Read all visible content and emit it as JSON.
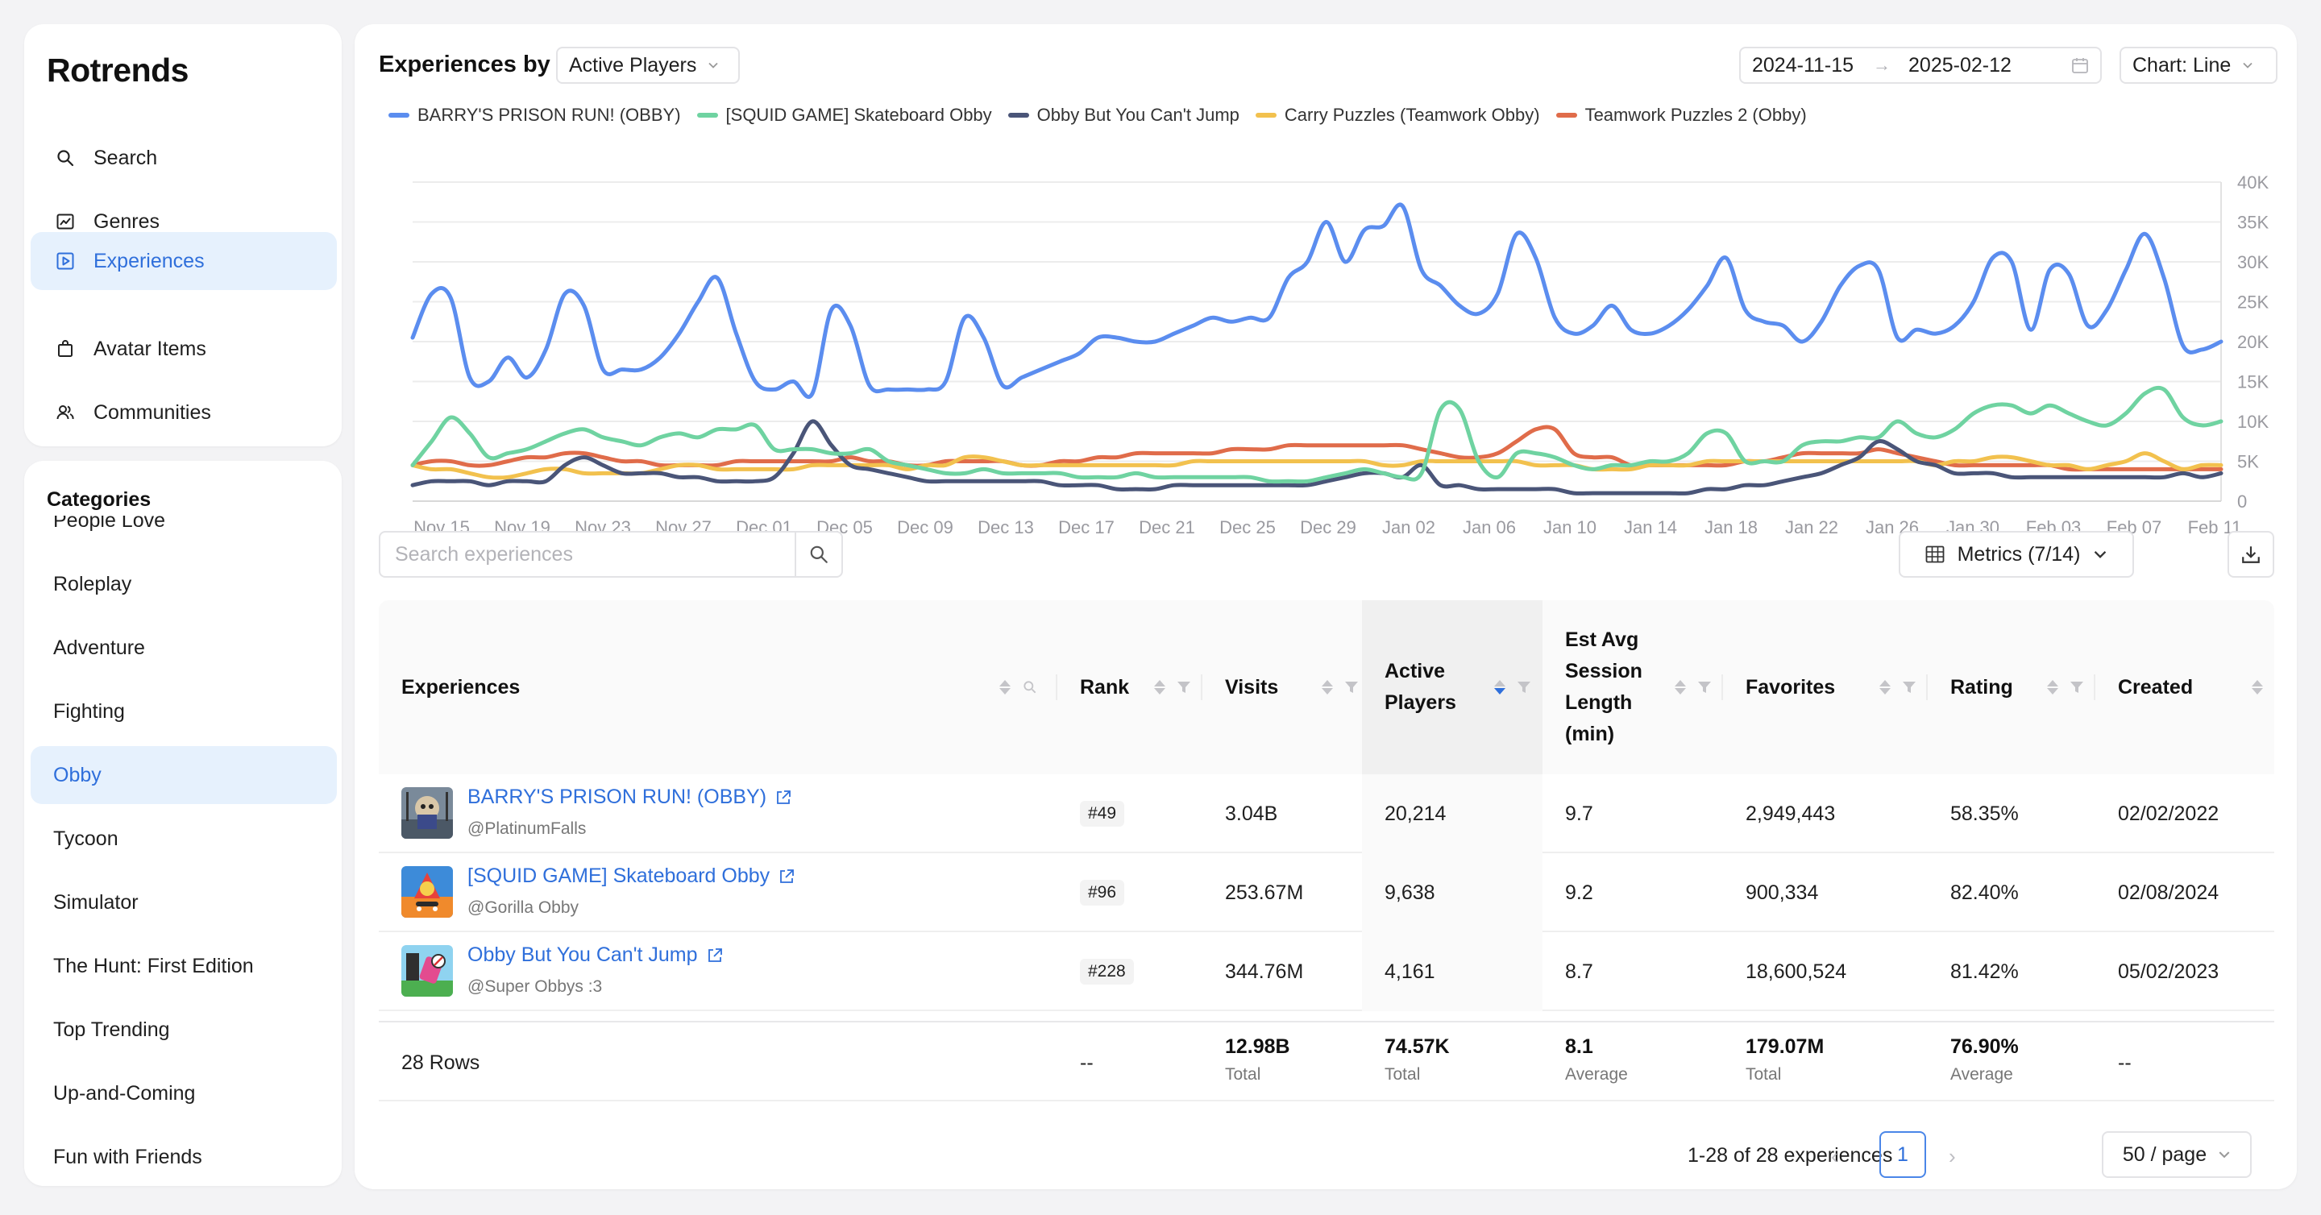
{
  "app": {
    "brand": "Rotrends"
  },
  "nav": {
    "items": [
      {
        "label": "Search",
        "icon": "search-icon",
        "active": false
      },
      {
        "label": "Genres",
        "icon": "chart-icon",
        "active": false
      },
      {
        "label": "Experiences",
        "icon": "play-square-icon",
        "active": true
      },
      {
        "label": "Avatar Items",
        "icon": "shopping-bag-icon",
        "active": false
      },
      {
        "label": "Communities",
        "icon": "people-icon",
        "active": false
      }
    ]
  },
  "categories": {
    "title": "Categories",
    "items": [
      {
        "label": "People Love",
        "active": false
      },
      {
        "label": "Roleplay",
        "active": false
      },
      {
        "label": "Adventure",
        "active": false
      },
      {
        "label": "Fighting",
        "active": false
      },
      {
        "label": "Obby",
        "active": true
      },
      {
        "label": "Tycoon",
        "active": false
      },
      {
        "label": "Simulator",
        "active": false
      },
      {
        "label": "The Hunt: First Edition",
        "active": false
      },
      {
        "label": "Top Trending",
        "active": false
      },
      {
        "label": "Up-and-Coming",
        "active": false
      },
      {
        "label": "Fun with Friends",
        "active": false
      }
    ]
  },
  "header": {
    "title": "Experiences by",
    "metric_select": "Active Players",
    "date_start": "2024-11-15",
    "date_end": "2025-02-12",
    "chart_type": "Chart: Line"
  },
  "toolbar": {
    "search_placeholder": "Search experiences",
    "metrics_label": "Metrics (7/14)"
  },
  "chart_data": {
    "type": "line",
    "ylim": [
      0,
      40000
    ],
    "y_ticks": [
      "0",
      "5K",
      "10K",
      "15K",
      "20K",
      "25K",
      "30K",
      "35K",
      "40K"
    ],
    "x_ticks": [
      "Nov 15",
      "Nov 19",
      "Nov 23",
      "Nov 27",
      "Dec 01",
      "Dec 05",
      "Dec 09",
      "Dec 13",
      "Dec 17",
      "Dec 21",
      "Dec 25",
      "Dec 29",
      "Jan 02",
      "Jan 06",
      "Jan 10",
      "Jan 14",
      "Jan 18",
      "Jan 22",
      "Jan 26",
      "Jan 30",
      "Feb 03",
      "Feb 07",
      "Feb 11"
    ],
    "grid": true,
    "legend": "top-left",
    "series": [
      {
        "name": "BARRY'S PRISON RUN! (OBBY)",
        "color": "#5b8def",
        "values": [
          20500,
          26000,
          25500,
          15500,
          15000,
          18000,
          15500,
          19000,
          26000,
          24500,
          16500,
          16500,
          16500,
          18000,
          21000,
          25000,
          28000,
          21000,
          15000,
          14000,
          15000,
          13500,
          24000,
          22000,
          14500,
          14000,
          14000,
          14000,
          15000,
          23000,
          20500,
          14500,
          15500,
          16500,
          17500,
          18500,
          20500,
          20500,
          20000,
          20000,
          21000,
          22000,
          23000,
          22500,
          23000,
          23000,
          28000,
          30000,
          35000,
          30000,
          34000,
          34500,
          37000,
          29000,
          27000,
          24500,
          23500,
          26000,
          33500,
          30500,
          23000,
          21000,
          22000,
          24500,
          21500,
          21000,
          22000,
          24000,
          27000,
          30500,
          24000,
          22500,
          22000,
          20000,
          22500,
          27000,
          29500,
          29000,
          20500,
          21500,
          21000,
          22000,
          25000,
          30500,
          30000,
          21500,
          29000,
          28500,
          22000,
          24000,
          29000,
          33500,
          28000,
          19500,
          19000,
          20000
        ]
      },
      {
        "name": "[SQUID GAME] Skateboard Obby",
        "color": "#6fd3a1",
        "values": [
          4500,
          7500,
          10500,
          8500,
          5500,
          6000,
          6500,
          7500,
          8500,
          9000,
          8000,
          7500,
          7000,
          8000,
          8500,
          8000,
          9000,
          9000,
          9500,
          6500,
          6500,
          6500,
          6000,
          6000,
          6500,
          5000,
          4500,
          4000,
          3500,
          3500,
          4000,
          3500,
          3500,
          3500,
          3500,
          3000,
          3000,
          3000,
          3500,
          3000,
          3000,
          3000,
          3000,
          3000,
          3000,
          2500,
          2500,
          2500,
          3000,
          3500,
          4000,
          3500,
          3000,
          3500,
          11500,
          11500,
          5000,
          3000,
          6000,
          6000,
          5500,
          4500,
          4000,
          4500,
          4500,
          5000,
          5000,
          6000,
          8500,
          8500,
          5000,
          5000,
          5000,
          7000,
          7500,
          7500,
          8000,
          8000,
          10000,
          8500,
          8000,
          9000,
          11000,
          12000,
          12000,
          11000,
          12000,
          11000,
          10000,
          9500,
          11000,
          13500,
          14000,
          10500,
          9500,
          10000
        ]
      },
      {
        "name": "Obby But You Can't Jump",
        "color": "#4a5578",
        "values": [
          2000,
          2500,
          2500,
          2500,
          2000,
          2500,
          2500,
          2500,
          4500,
          5500,
          4500,
          3500,
          3500,
          3500,
          3000,
          3000,
          2500,
          2500,
          2500,
          3000,
          6000,
          10000,
          7000,
          4500,
          4000,
          3500,
          3000,
          2500,
          2500,
          2500,
          2500,
          2500,
          2500,
          2500,
          2000,
          2000,
          2000,
          1500,
          1500,
          1500,
          2000,
          2000,
          2000,
          2000,
          2000,
          2000,
          2000,
          2000,
          2500,
          3000,
          3500,
          3500,
          3000,
          4500,
          2000,
          2000,
          1500,
          1500,
          1500,
          1500,
          1500,
          1000,
          1000,
          1000,
          1000,
          1000,
          1000,
          1000,
          1500,
          1500,
          2000,
          2000,
          2500,
          3000,
          3500,
          4500,
          5500,
          7500,
          6500,
          5000,
          4500,
          3500,
          3500,
          3500,
          3000,
          3000,
          3000,
          3000,
          3000,
          3000,
          3000,
          3000,
          3000,
          3500,
          3000,
          3500
        ]
      },
      {
        "name": "Carry Puzzles (Teamwork Obby)",
        "color": "#f2c14e",
        "values": [
          4500,
          4000,
          4000,
          3500,
          3000,
          3000,
          3500,
          4000,
          4000,
          3500,
          3500,
          3500,
          3500,
          4000,
          4500,
          4500,
          4000,
          4000,
          4000,
          4000,
          4000,
          4500,
          4500,
          4500,
          4500,
          4500,
          4000,
          4500,
          4500,
          5500,
          5500,
          5000,
          4500,
          4500,
          4500,
          4500,
          4500,
          4500,
          4500,
          4500,
          4500,
          5000,
          5000,
          5000,
          5000,
          5000,
          5000,
          5000,
          5000,
          5000,
          5000,
          4500,
          4500,
          5000,
          5000,
          5000,
          5000,
          5000,
          5000,
          4500,
          4500,
          4500,
          4000,
          4000,
          4000,
          4500,
          4500,
          4500,
          5000,
          5000,
          5000,
          5000,
          5000,
          5000,
          5000,
          5000,
          5000,
          5000,
          5000,
          5000,
          4500,
          5000,
          5000,
          5500,
          5500,
          5000,
          4500,
          4500,
          4000,
          4500,
          5000,
          6000,
          5000,
          4000,
          4500,
          4500
        ]
      },
      {
        "name": "Teamwork Puzzles 2 (Obby)",
        "color": "#e06c4a",
        "values": [
          4500,
          5000,
          5000,
          4500,
          4500,
          5000,
          5500,
          5500,
          6000,
          6000,
          5500,
          5000,
          5000,
          4500,
          4500,
          4500,
          4500,
          5000,
          5000,
          5000,
          5000,
          5000,
          5000,
          5500,
          5000,
          5000,
          4500,
          4500,
          5000,
          5000,
          5000,
          5000,
          4500,
          4500,
          5000,
          5000,
          5500,
          5500,
          6000,
          6000,
          6000,
          6000,
          6000,
          6500,
          6500,
          6500,
          7000,
          7000,
          7000,
          7000,
          7000,
          7000,
          7000,
          6500,
          6000,
          5500,
          5500,
          6000,
          7500,
          9000,
          9000,
          6000,
          5500,
          5500,
          4500,
          4500,
          4500,
          4500,
          4500,
          4500,
          5000,
          5000,
          5500,
          6000,
          6000,
          6000,
          6000,
          6500,
          6000,
          5500,
          5000,
          4500,
          4500,
          4500,
          4500,
          4500,
          4500,
          4000,
          4000,
          4000,
          4000,
          4000,
          4000,
          4000,
          4000,
          4000
        ]
      }
    ]
  },
  "table": {
    "columns": [
      {
        "label": "Experiences",
        "key": "experience"
      },
      {
        "label": "Rank",
        "key": "rank"
      },
      {
        "label": "Visits",
        "key": "visits"
      },
      {
        "label": "Active Players",
        "key": "active"
      },
      {
        "label": "Est Avg Session Length (min)",
        "key": "session"
      },
      {
        "label": "Favorites",
        "key": "favorites"
      },
      {
        "label": "Rating",
        "key": "rating"
      },
      {
        "label": "Created",
        "key": "created"
      }
    ],
    "rows": [
      {
        "name": "BARRY'S PRISON RUN! (OBBY)",
        "creator": "@PlatinumFalls",
        "rank": "#49",
        "visits": "3.04B",
        "active": "20,214",
        "session": "9.7",
        "favorites": "2,949,443",
        "rating": "58.35%",
        "created": "02/02/2022"
      },
      {
        "name": "[SQUID GAME] Skateboard Obby",
        "creator": "@Gorilla Obby",
        "rank": "#96",
        "visits": "253.67M",
        "active": "9,638",
        "session": "9.2",
        "favorites": "900,334",
        "rating": "82.40%",
        "created": "02/08/2024"
      },
      {
        "name": "Obby But You Can't Jump",
        "creator": "@Super Obbys :3",
        "rank": "#228",
        "visits": "344.76M",
        "active": "4,161",
        "session": "8.7",
        "favorites": "18,600,524",
        "rating": "81.42%",
        "created": "05/02/2023"
      }
    ],
    "summary": {
      "rows_label": "28 Rows",
      "rank": "--",
      "visits": "12.98B",
      "visits_lbl": "Total",
      "active": "74.57K",
      "active_lbl": "Total",
      "session": "8.1",
      "session_lbl": "Average",
      "favorites": "179.07M",
      "favorites_lbl": "Total",
      "rating": "76.90%",
      "rating_lbl": "Average",
      "created": "--"
    }
  },
  "pagination": {
    "summary": "1-28 of 28 experiences",
    "prev": "‹",
    "current": "1",
    "next": "›",
    "per_page": "50 / page"
  }
}
